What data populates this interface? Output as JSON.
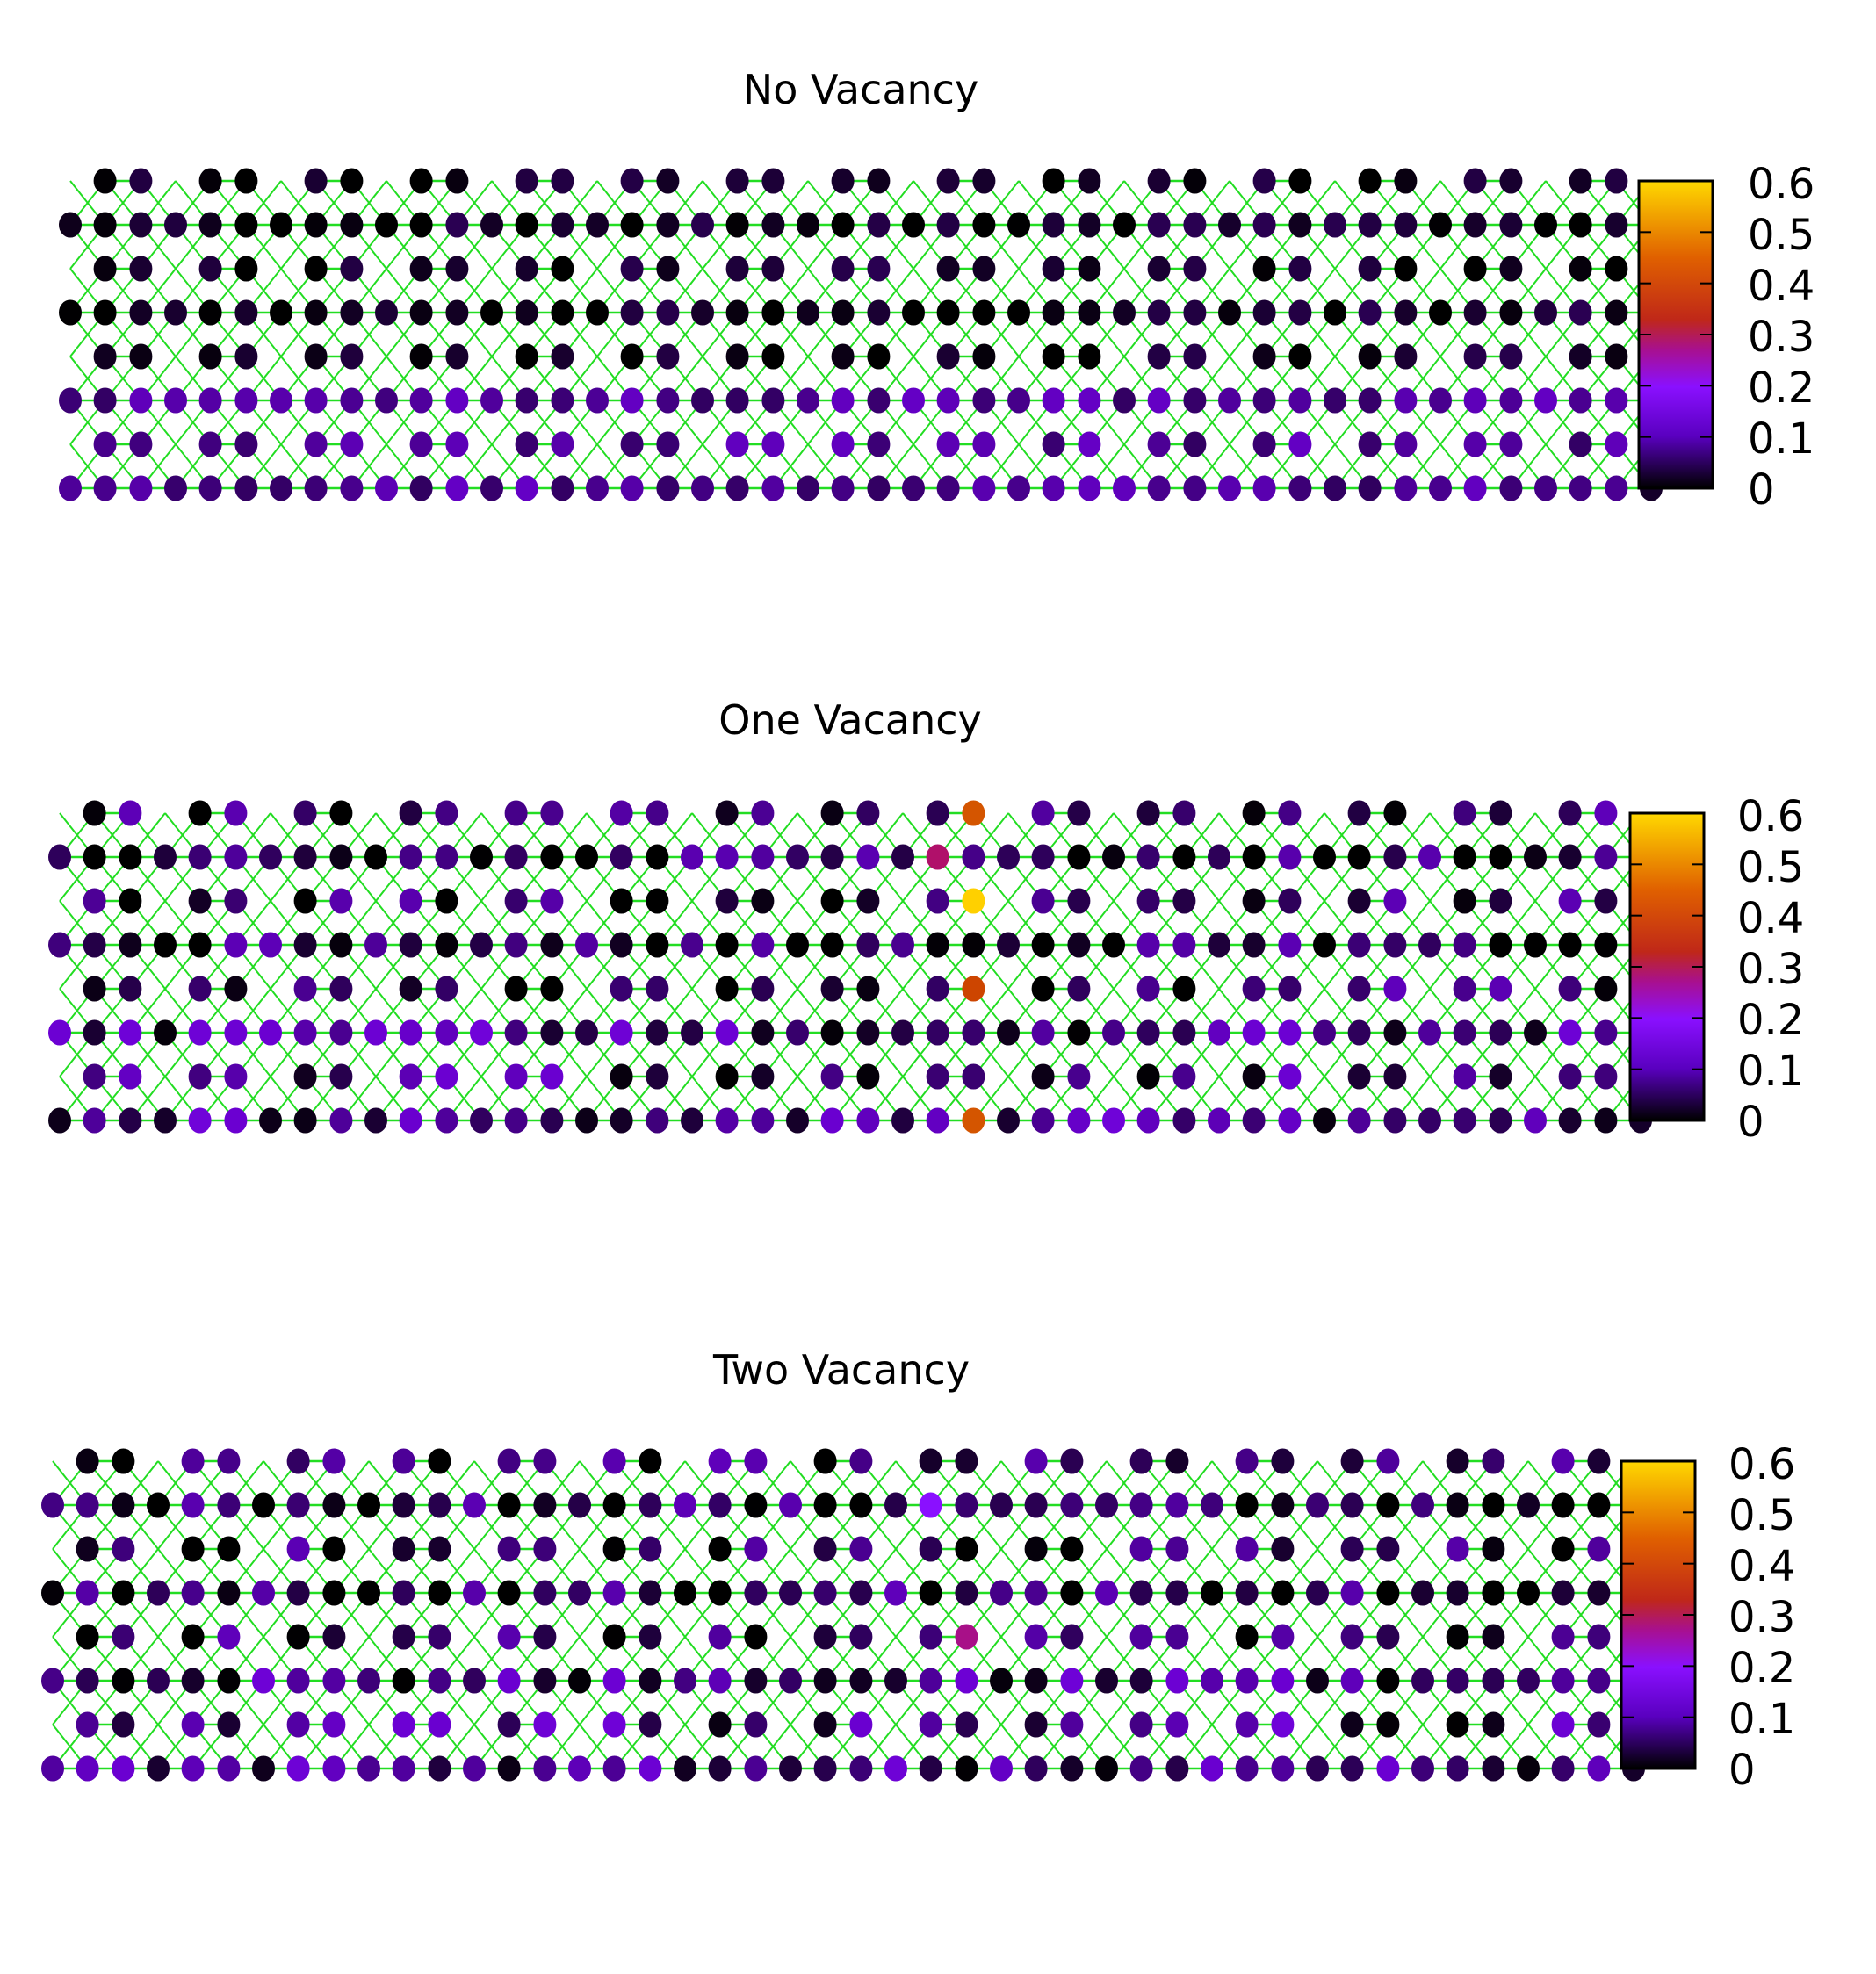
{
  "figure": {
    "panels": [
      {
        "title": "No Vacancy",
        "vacancies": 0,
        "colorbar_ticks": [
          "0",
          "0.1",
          "0.2",
          "0.3",
          "0.4",
          "0.5",
          "0.6"
        ]
      },
      {
        "title": "One Vacancy",
        "vacancies": 1,
        "colorbar_ticks": [
          "0",
          "0.1",
          "0.2",
          "0.3",
          "0.4",
          "0.5",
          "0.6"
        ]
      },
      {
        "title": "Two Vacancy",
        "vacancies": 2,
        "colorbar_ticks": [
          "0",
          "0.1",
          "0.2",
          "0.3",
          "0.4",
          "0.5",
          "0.6"
        ]
      }
    ]
  },
  "chart_data": [
    {
      "type": "heatmap",
      "title": "No Vacancy",
      "colorscale": {
        "min": 0,
        "max": 0.6,
        "colors": [
          "#000000",
          "#6a00d0",
          "#8a10ff",
          "#b0106a",
          "#c83a00",
          "#e07000",
          "#ffd000"
        ]
      },
      "lattice": {
        "units": 15,
        "rows": 8
      },
      "highlights": [],
      "grid": false,
      "legend": "colorbar-right"
    },
    {
      "type": "heatmap",
      "title": "One Vacancy",
      "colorscale": {
        "min": 0,
        "max": 0.6,
        "colors": [
          "#000000",
          "#6a00d0",
          "#8a10ff",
          "#b0106a",
          "#c83a00",
          "#e07000",
          "#ffd000"
        ]
      },
      "lattice": {
        "units": 15,
        "rows": 8
      },
      "highlights": [
        {
          "unit": 8,
          "row": 0,
          "site": "R",
          "value": 0.45
        },
        {
          "unit": 8,
          "row": 1,
          "site": "L",
          "value": 0.3
        },
        {
          "unit": 8,
          "row": 2,
          "site": "R",
          "value": 0.6
        },
        {
          "unit": 8,
          "row": 4,
          "site": "R",
          "value": 0.42
        },
        {
          "unit": 8,
          "row": 7,
          "site": "R",
          "value": 0.45
        }
      ],
      "grid": false,
      "legend": "colorbar-right"
    },
    {
      "type": "heatmap",
      "title": "Two Vacancy",
      "colorscale": {
        "min": 0,
        "max": 0.6,
        "colors": [
          "#000000",
          "#6a00d0",
          "#8a10ff",
          "#b0106a",
          "#c83a00",
          "#e07000",
          "#ffd000"
        ]
      },
      "lattice": {
        "units": 15,
        "rows": 8
      },
      "highlights": [
        {
          "unit": 8,
          "row": 4,
          "site": "R",
          "value": 0.28
        },
        {
          "unit": 8,
          "row": 1,
          "site": "L",
          "value": 0.2
        }
      ],
      "grid": false,
      "legend": "colorbar-right"
    }
  ]
}
